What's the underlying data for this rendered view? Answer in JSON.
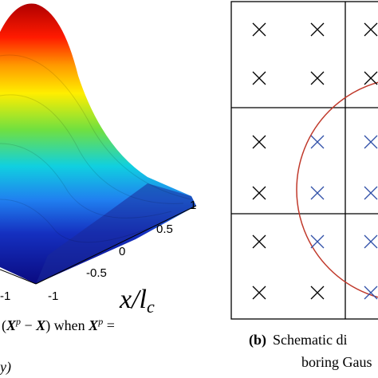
{
  "panel_a": {
    "axis_ticks": [
      "1",
      "0.5",
      "0",
      "-0.5",
      "-1"
    ],
    "corner_tick": "-1",
    "axis_label": [
      "x/l",
      "c"
    ],
    "caption_line1": [
      "(",
      "X",
      "p",
      " − ",
      "X",
      ") when ",
      "X",
      "p",
      " ="
    ],
    "caption_line2": "y)"
  },
  "panel_b": {
    "caption_label": "(b)",
    "caption_line1": "Schematic di",
    "caption_line2": "boring Gaus"
  }
}
